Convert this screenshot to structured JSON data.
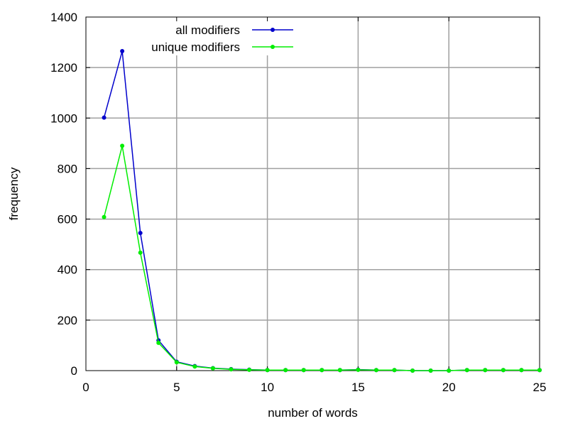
{
  "chart_data": {
    "type": "line",
    "xlabel": "number of words",
    "ylabel": "frequency",
    "xlim": [
      0,
      25
    ],
    "ylim": [
      0,
      1400
    ],
    "xticks": [
      0,
      5,
      10,
      15,
      20,
      25
    ],
    "yticks": [
      0,
      200,
      400,
      600,
      800,
      1000,
      1200,
      1400
    ],
    "grid": true,
    "legend_position": "top-center",
    "series": [
      {
        "name": "all modifiers",
        "color": "#0000cc",
        "x": [
          1,
          2,
          3,
          4,
          5,
          6,
          7,
          8,
          9,
          10,
          11,
          12,
          13,
          14,
          15,
          16,
          17,
          18,
          19,
          20,
          21,
          22,
          23,
          24,
          25
        ],
        "y": [
          1002,
          1265,
          545,
          120,
          35,
          18,
          10,
          6,
          4,
          2,
          2,
          2,
          2,
          2,
          4,
          2,
          2,
          0,
          0,
          0,
          2,
          2,
          2,
          2,
          2
        ]
      },
      {
        "name": "unique modifiers",
        "color": "#00ee00",
        "x": [
          1,
          2,
          3,
          4,
          5,
          6,
          7,
          8,
          9,
          10,
          11,
          12,
          13,
          14,
          15,
          16,
          17,
          18,
          19,
          20,
          21,
          22,
          23,
          24,
          25
        ],
        "y": [
          608,
          890,
          467,
          110,
          33,
          16,
          9,
          5,
          3,
          2,
          2,
          2,
          2,
          2,
          3,
          2,
          2,
          0,
          0,
          0,
          2,
          2,
          2,
          2,
          2
        ]
      }
    ]
  }
}
